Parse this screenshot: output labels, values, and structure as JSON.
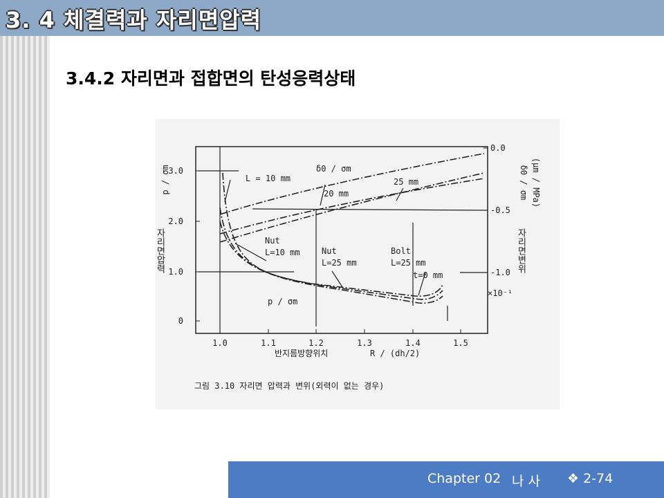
{
  "header": {
    "title": "3. 4 체결력과 자리면압력"
  },
  "heading": "3.4.2 자리면과 접합면의 탄성응력상태",
  "figure": {
    "left_ticks": [
      "0",
      "1.0",
      "2.0",
      "3.0"
    ],
    "right_ticks": [
      "0.0",
      "-0.5",
      "-1.0"
    ],
    "x_ticks": [
      "1.0",
      "1.1",
      "1.2",
      "1.3",
      "1.4",
      "1.5"
    ],
    "left_axis_label": "p / σm",
    "left_axis_title": "자리면압력",
    "right_axis_label": "δ0 / σm",
    "right_axis_unit": "(μm / MPa)",
    "right_axis_title": "자리면변위",
    "right_axis_scale": "×10⁻¹",
    "annotations": [
      "L = 10 mm",
      "δ0 / σm",
      "25 mm",
      "20 mm",
      "Nut",
      "L=10 mm",
      "Nut",
      "L=25 mm",
      "Bolt",
      "L=25 mm",
      "t=0 mm",
      "p / σm"
    ],
    "x_axis_title": "반지름방향위치",
    "x_axis_label": "R / (dh/2)",
    "caption": "그림 3.10  자리면 압력과 변위(외력이 없는 경우)"
  },
  "footer": {
    "chapter": "Chapter 02",
    "subject": "나 사",
    "page": "❖ 2-74"
  }
}
